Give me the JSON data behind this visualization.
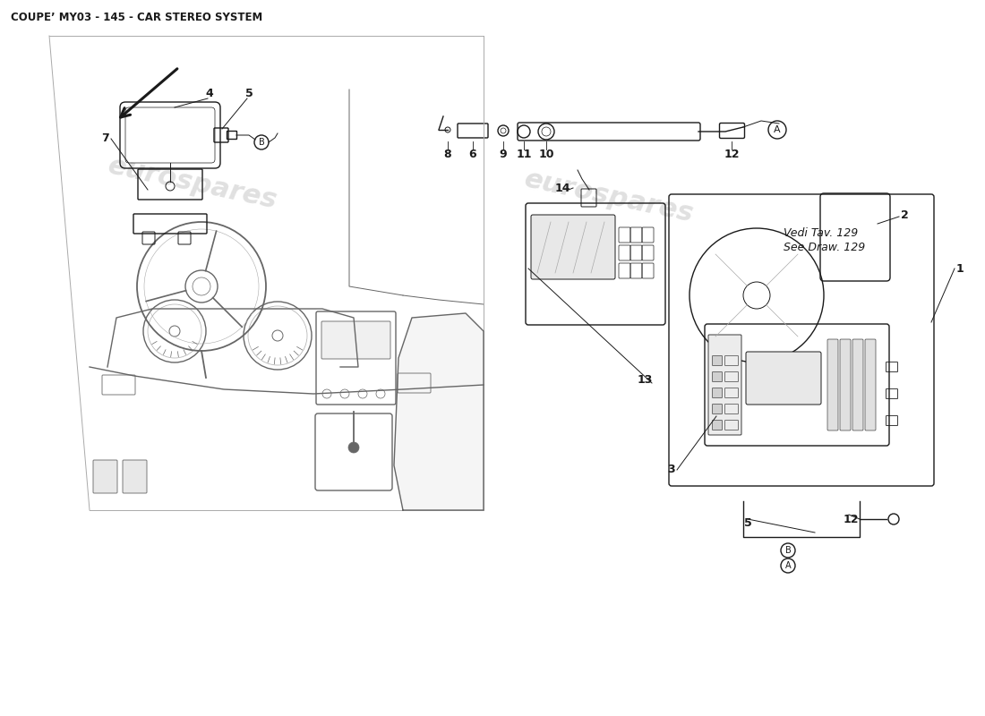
{
  "title": "COUPE’ MY03 - 145 - CAR STEREO SYSTEM",
  "bg_color": "#ffffff",
  "line_color": "#1a1a1a",
  "gray_color": "#666666",
  "light_gray": "#aaaaaa",
  "watermark_color": "#cccccc",
  "watermark_text": "eurospares",
  "title_fontsize": 8.5,
  "note_text1": "Vedi Tav. 129",
  "note_text2": "See Draw. 129"
}
